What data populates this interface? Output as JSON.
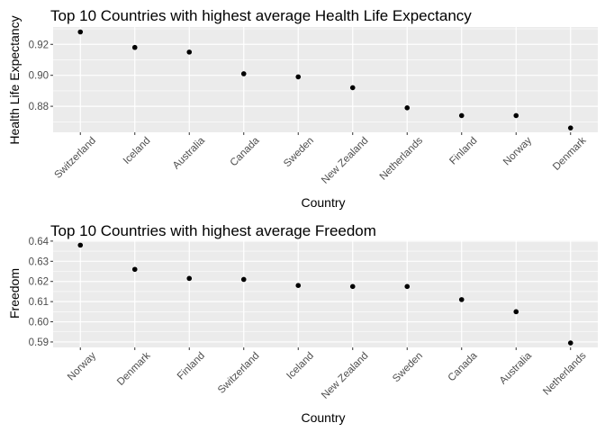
{
  "chart_data": [
    {
      "type": "scatter",
      "title": "Top 10 Countries with highest average Health Life Expectancy",
      "xlabel": "Country",
      "ylabel": "Health Life Expectancy",
      "categories": [
        "Switzerland",
        "Iceland",
        "Australia",
        "Canada",
        "Sweden",
        "New Zealand",
        "Netherlands",
        "Finland",
        "Norway",
        "Denmark"
      ],
      "values": [
        0.928,
        0.918,
        0.915,
        0.901,
        0.899,
        0.892,
        0.879,
        0.874,
        0.874,
        0.866
      ],
      "ylim": [
        0.8632,
        0.9312
      ],
      "yticks": [
        0.88,
        0.9,
        0.92
      ],
      "ytick_labels": [
        "0.88",
        "0.90",
        "0.92"
      ],
      "grid": true,
      "background": "#ebebeb",
      "gridline_color": "#ffffff",
      "point_color": "#000000"
    },
    {
      "type": "scatter",
      "title": "Top 10 Countries with highest average Freedom",
      "xlabel": "Country",
      "ylabel": "Freedom",
      "categories": [
        "Norway",
        "Denmark",
        "Finland",
        "Switzerland",
        "Iceland",
        "New Zealand",
        "Sweden",
        "Canada",
        "Australia",
        "Netherlands"
      ],
      "values": [
        0.638,
        0.626,
        0.6215,
        0.621,
        0.618,
        0.6175,
        0.6175,
        0.611,
        0.605,
        0.5895
      ],
      "ylim": [
        0.5873,
        0.6404
      ],
      "yticks": [
        0.59,
        0.6,
        0.61,
        0.62,
        0.63,
        0.64
      ],
      "ytick_labels": [
        "0.59",
        "0.60",
        "0.61",
        "0.62",
        "0.63",
        "0.64"
      ],
      "grid": true,
      "background": "#ebebeb",
      "gridline_color": "#ffffff",
      "point_color": "#000000"
    }
  ]
}
